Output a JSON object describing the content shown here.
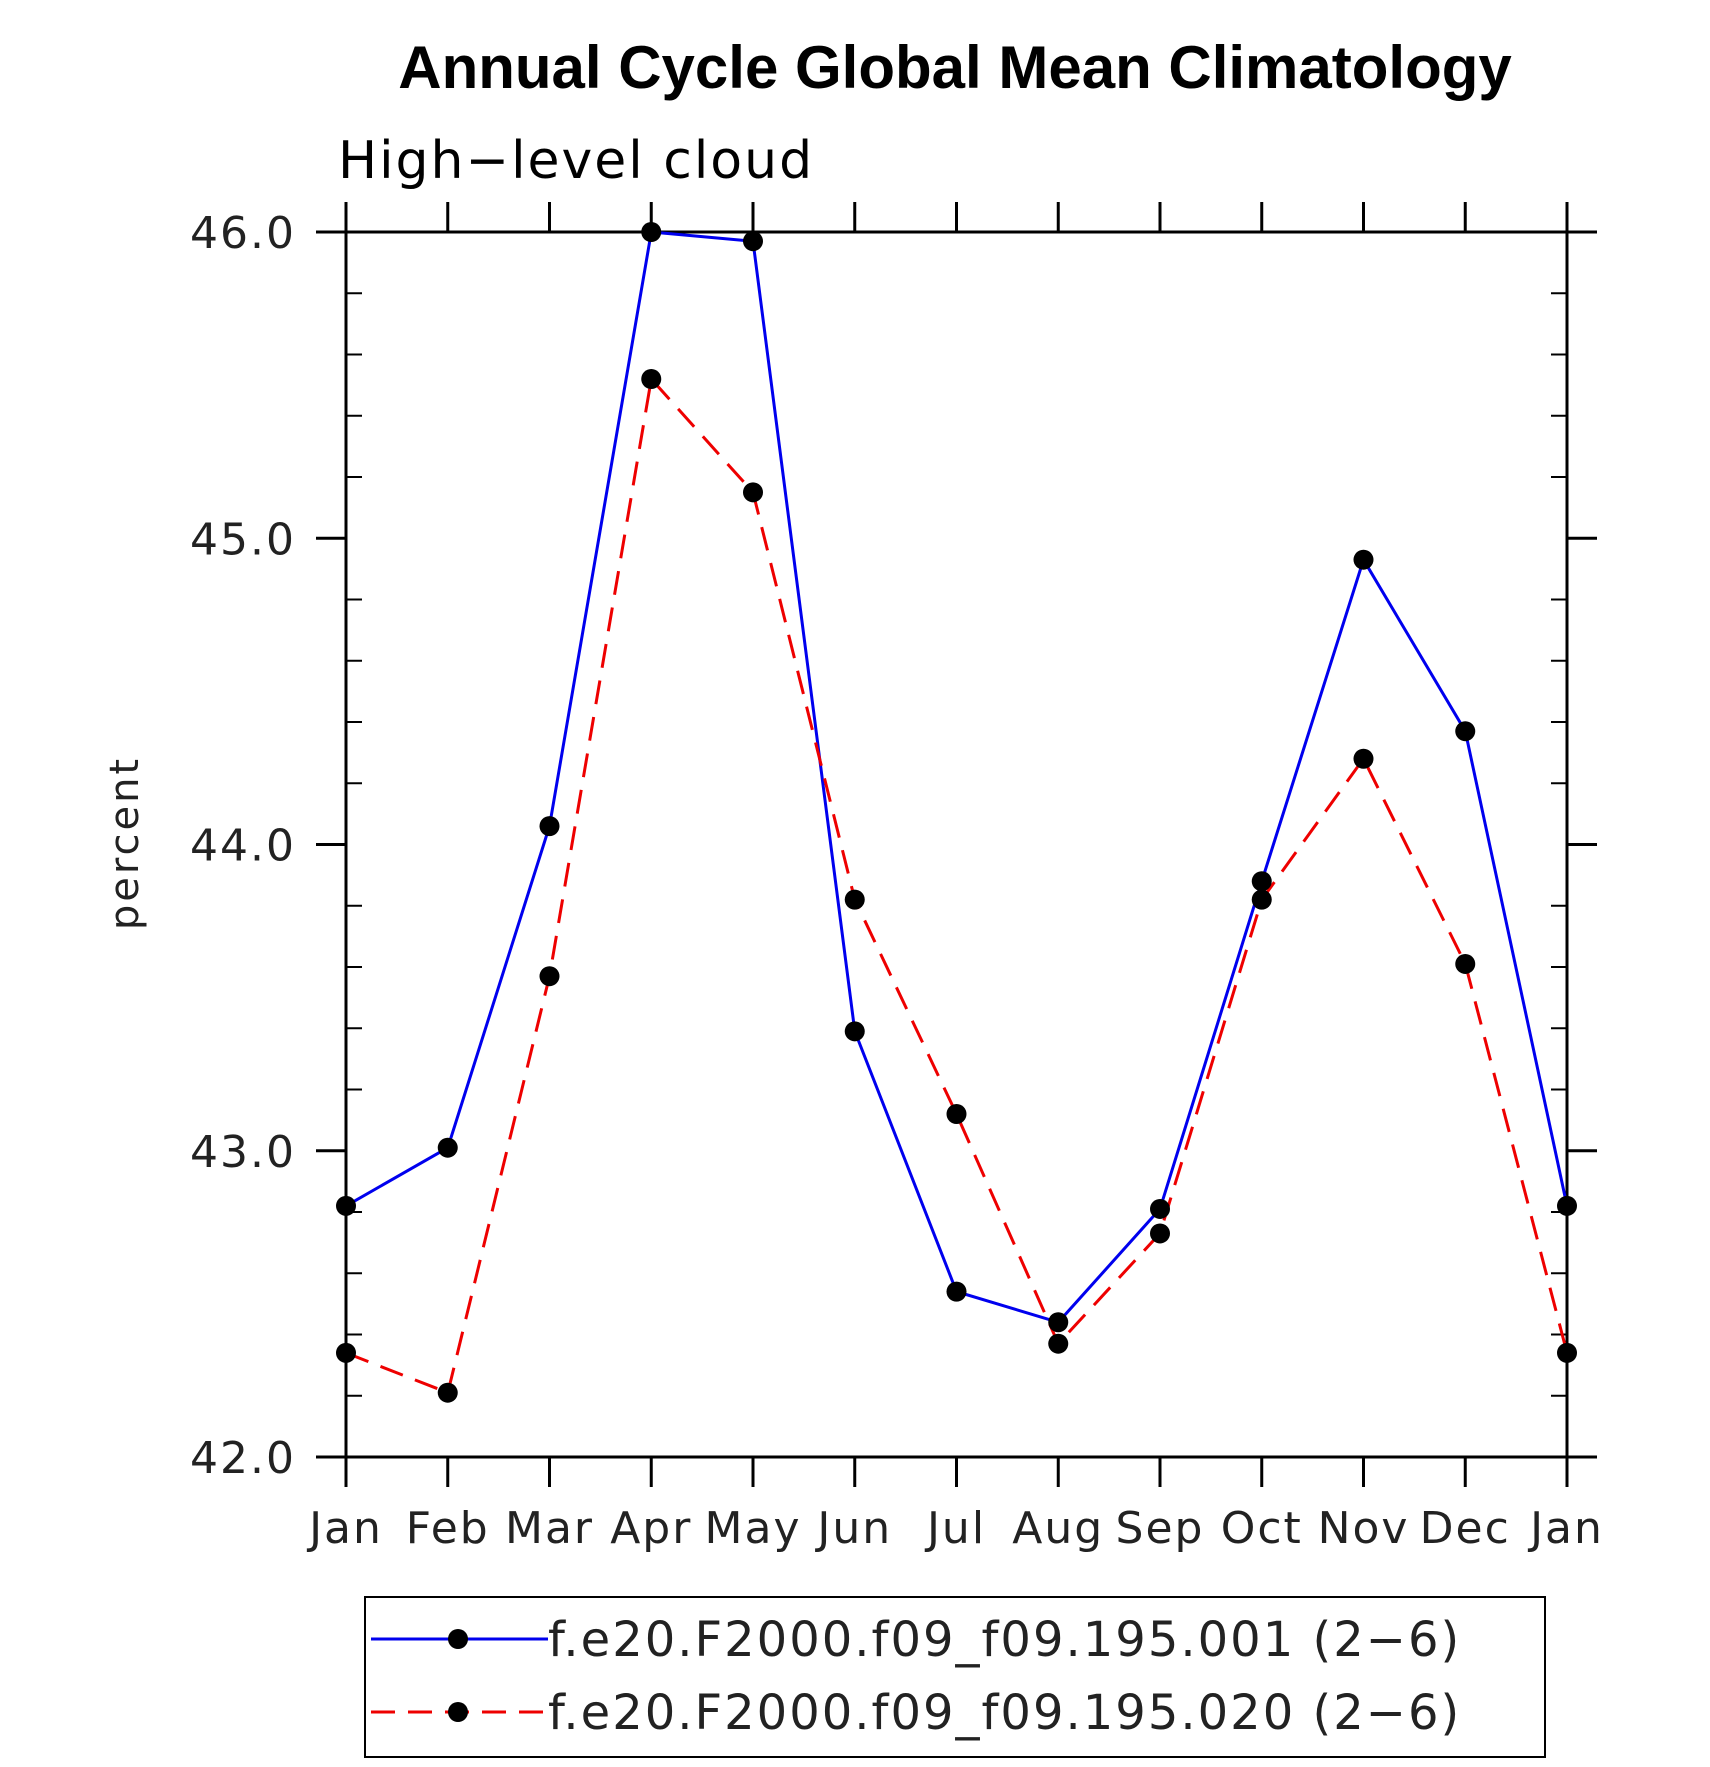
{
  "chart_data": {
    "type": "line",
    "title": "Annual Cycle Global Mean Climatology",
    "subtitle": "High−level cloud",
    "xlabel": "",
    "ylabel": "percent",
    "ylim": [
      42.0,
      46.0
    ],
    "categories": [
      "Jan",
      "Feb",
      "Mar",
      "Apr",
      "May",
      "Jun",
      "Jul",
      "Aug",
      "Sep",
      "Oct",
      "Nov",
      "Dec",
      "Jan"
    ],
    "yticks": [
      "42.0",
      "43.0",
      "44.0",
      "45.0",
      "46.0"
    ],
    "yticks_values": [
      42.0,
      43.0,
      44.0,
      45.0,
      46.0
    ],
    "series": [
      {
        "name": "f.e20.F2000.f09_f09.195.001 (2−6)",
        "color": "#0000ee",
        "style": "solid",
        "values": [
          42.82,
          43.01,
          44.06,
          46.0,
          45.97,
          43.39,
          42.54,
          42.44,
          42.81,
          43.88,
          44.93,
          44.37,
          42.82
        ]
      },
      {
        "name": "f.e20.F2000.f09_f09.195.020 (2−6)",
        "color": "#ee0000",
        "style": "dashed",
        "values": [
          42.34,
          42.21,
          43.57,
          45.52,
          45.15,
          43.82,
          43.12,
          42.37,
          42.73,
          43.82,
          44.28,
          43.61,
          42.34
        ]
      }
    ],
    "grid": false,
    "legend_position": "bottom"
  }
}
